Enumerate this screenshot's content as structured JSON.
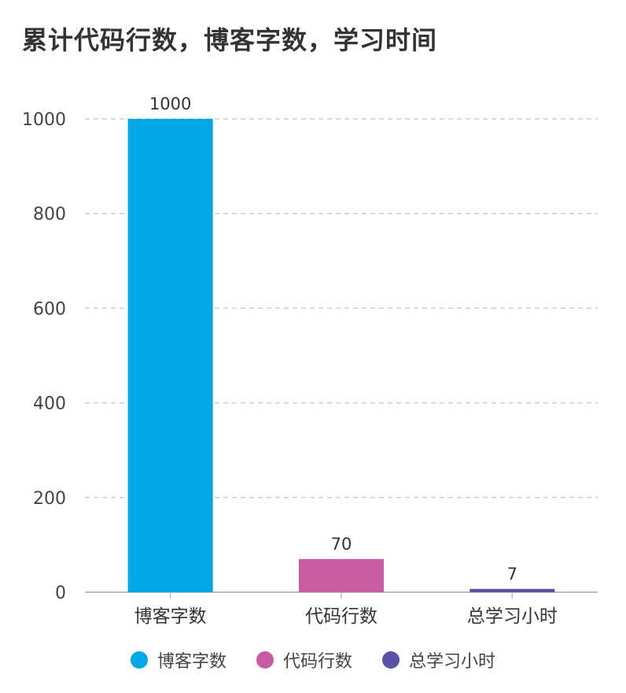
{
  "title": "累计代码行数，博客字数，学习时间",
  "colors": {
    "grid": "#cccccc",
    "axis": "#bbbbbb"
  },
  "chart_data": {
    "type": "bar",
    "title": "累计代码行数，博客字数，学习时间",
    "categories": [
      "博客字数",
      "代码行数",
      "总学习小时"
    ],
    "values": [
      1000,
      70,
      7
    ],
    "colors": [
      "#00A8E8",
      "#C85BA2",
      "#5B51A6"
    ],
    "ylim": [
      0,
      1000
    ],
    "yticks": [
      0,
      200,
      400,
      600,
      800,
      1000
    ],
    "grid": true,
    "legend_position": "bottom",
    "legend": [
      "博客字数",
      "代码行数",
      "总学习小时"
    ]
  }
}
